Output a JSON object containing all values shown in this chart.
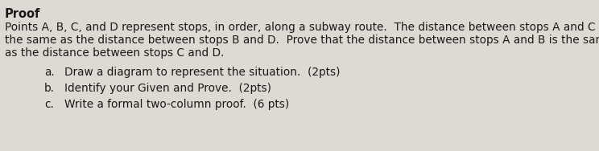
{
  "title": "Proof",
  "body_text": "Points A, B, C, and D represent stops, in order, along a subway route.  The distance between stops A and C is\nthe same as the distance between stops B and D.  Prove that the distance between stops A and B is the same\nas the distance between stops C and D.",
  "items": [
    {
      "label": "a.",
      "text": "Draw a diagram to represent the situation.  (2pts)"
    },
    {
      "label": "b.",
      "text": "Identify your Given and Prove.  (2pts)"
    },
    {
      "label": "c.",
      "text": "Write a formal two-column proof.  (6 pts)"
    }
  ],
  "title_fontsize": 10.5,
  "body_fontsize": 9.8,
  "item_fontsize": 9.8,
  "background_color": "#dedad3",
  "text_color": "#1a1a1a"
}
